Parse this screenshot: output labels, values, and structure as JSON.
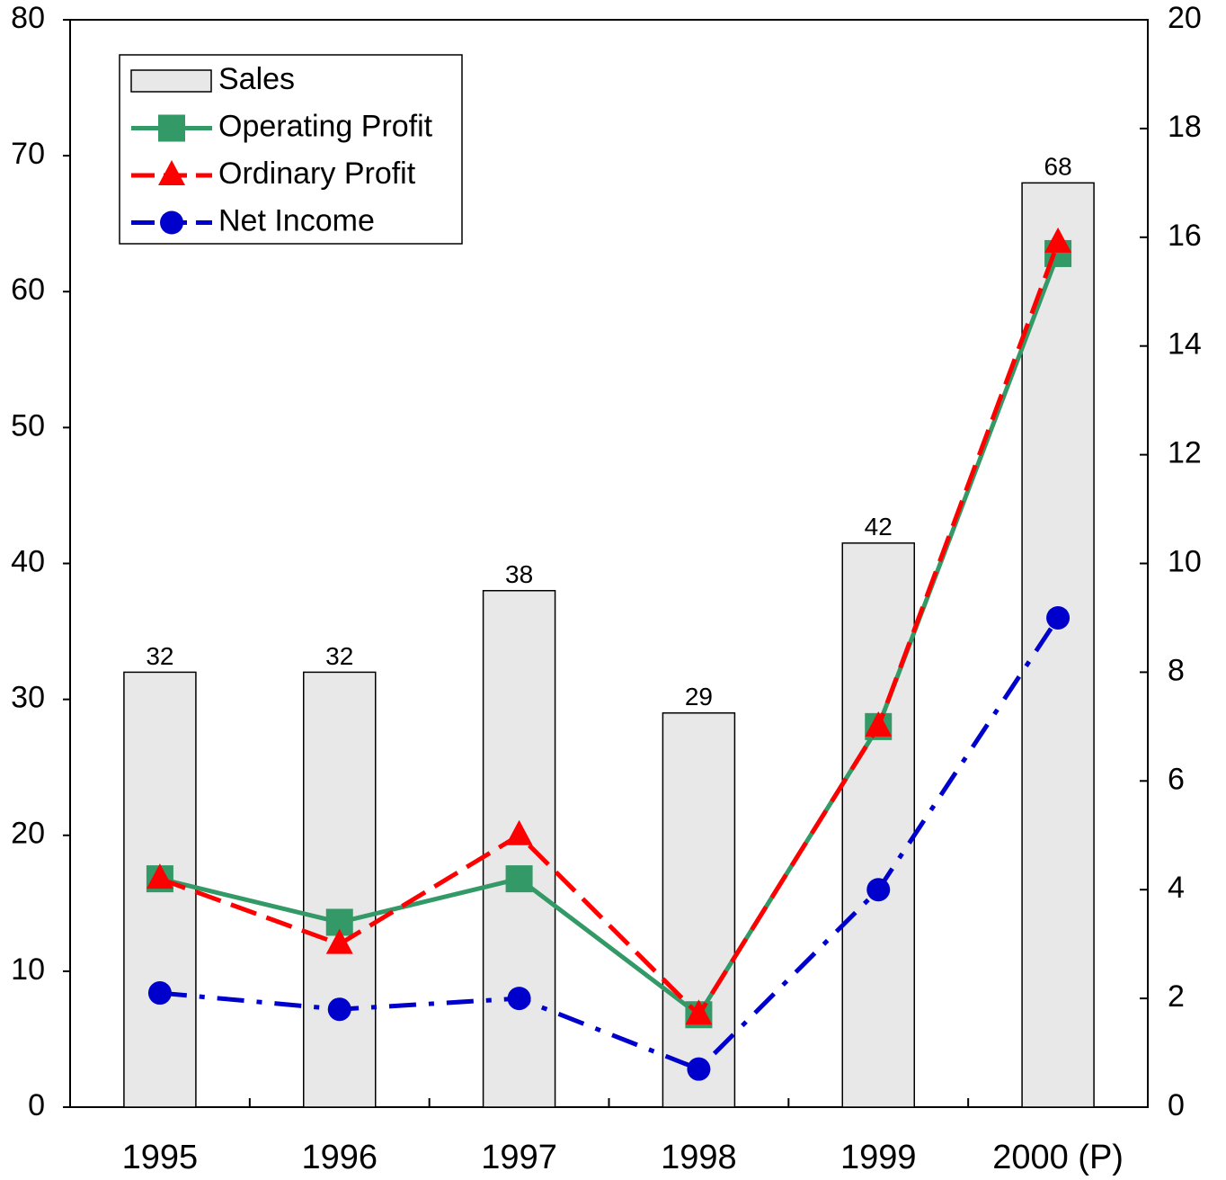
{
  "chart_data": {
    "type": "bar_line",
    "categories": [
      "1995",
      "1996",
      "1997",
      "1998",
      "1999",
      "2000 (P)"
    ],
    "ylim": [
      0,
      80
    ],
    "yticks": [
      0,
      10,
      20,
      30,
      40,
      50,
      60,
      70,
      80
    ],
    "y2lim": [
      0,
      20
    ],
    "y2ticks": [
      0,
      2,
      4,
      6,
      8,
      10,
      12,
      14,
      16,
      18,
      20
    ],
    "legend": "upper left",
    "series": [
      {
        "name": "Sales",
        "type": "bar",
        "color": "#e8e8e8",
        "values": [
          32,
          32,
          38,
          29,
          41.5,
          68
        ],
        "value_labels": [
          "32",
          "32",
          "38",
          "29",
          "42",
          "68"
        ]
      },
      {
        "name": "Operating Profit",
        "type": "line",
        "axis": "y2",
        "color": "#339966",
        "marker": "square",
        "dash": "solid",
        "values": [
          4.2,
          3.4,
          4.2,
          1.7,
          7.0,
          15.7
        ]
      },
      {
        "name": "Ordinary Profit",
        "type": "line",
        "axis": "y2",
        "color": "#ff0000",
        "marker": "triangle",
        "dash": "dashed",
        "values": [
          4.2,
          3.0,
          5.0,
          1.7,
          7.0,
          15.9
        ]
      },
      {
        "name": "Net Income",
        "type": "line",
        "axis": "y2",
        "color": "#0000cc",
        "marker": "circle",
        "dash": "dashdot",
        "values": [
          2.1,
          1.8,
          2.0,
          0.7,
          4.0,
          9.0
        ]
      }
    ]
  }
}
